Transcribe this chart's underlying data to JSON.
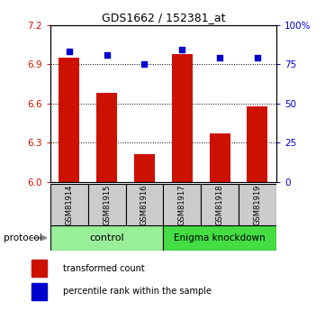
{
  "title": "GDS1662 / 152381_at",
  "samples": [
    "GSM81914",
    "GSM81915",
    "GSM81916",
    "GSM81917",
    "GSM81918",
    "GSM81919"
  ],
  "bar_values": [
    6.95,
    6.68,
    6.21,
    6.98,
    6.37,
    6.58
  ],
  "percentile_values": [
    83,
    81,
    75,
    84,
    79,
    79
  ],
  "ylim_left": [
    6.0,
    7.2
  ],
  "ylim_right": [
    0,
    100
  ],
  "yticks_left": [
    6.0,
    6.3,
    6.6,
    6.9,
    7.2
  ],
  "yticks_right": [
    0,
    25,
    50,
    75,
    100
  ],
  "bar_color": "#cc1100",
  "dot_color": "#0000cc",
  "group_colors": [
    "#99ee99",
    "#44dd44"
  ],
  "sample_box_color": "#cccccc",
  "legend_bar_label": "transformed count",
  "legend_dot_label": "percentile rank within the sample",
  "protocol_label": "protocol",
  "grid_lines": [
    6.3,
    6.6,
    6.9
  ]
}
